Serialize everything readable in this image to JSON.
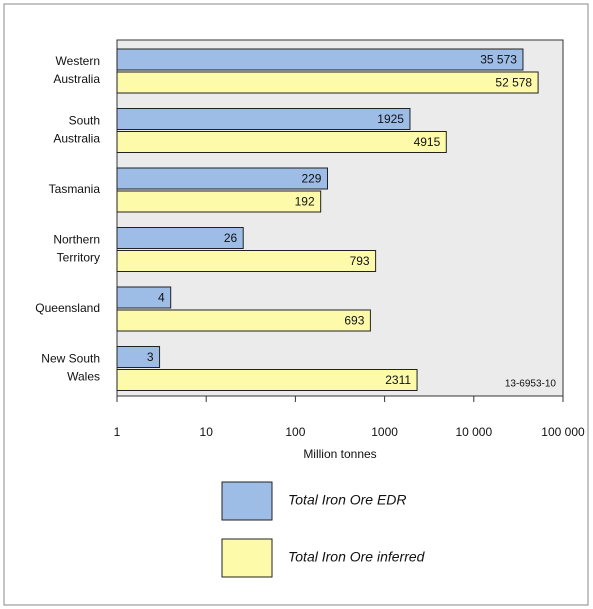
{
  "chart_data": {
    "type": "bar",
    "orientation": "horizontal",
    "categories": [
      [
        "Western",
        "Australia"
      ],
      [
        "South",
        "Australia"
      ],
      [
        "Tasmania"
      ],
      [
        "Northern",
        "Territory"
      ],
      [
        "Queensland"
      ],
      [
        "New South",
        "Wales"
      ]
    ],
    "series": [
      {
        "name": "Total Iron Ore EDR",
        "color": "#9dbde6",
        "values": [
          35573,
          1925,
          229,
          26,
          4,
          3
        ],
        "value_labels": [
          "35 573",
          "1925",
          "229",
          "26",
          "4",
          "3"
        ]
      },
      {
        "name": "Total Iron Ore inferred",
        "color": "#fdfbaa",
        "values": [
          52578,
          4915,
          192,
          793,
          693,
          2311
        ],
        "value_labels": [
          "52 578",
          "4915",
          "192",
          "793",
          "693",
          "2311"
        ]
      }
    ],
    "xlabel": "Million tonnes",
    "xlim": [
      1,
      100000
    ],
    "log_x": true,
    "xticks": [
      1,
      10,
      100,
      1000,
      {
        "value": 10000,
        "label": "10 000"
      },
      {
        "value": 100000,
        "label": "100 000"
      }
    ],
    "annotation": "13-6953-10"
  }
}
